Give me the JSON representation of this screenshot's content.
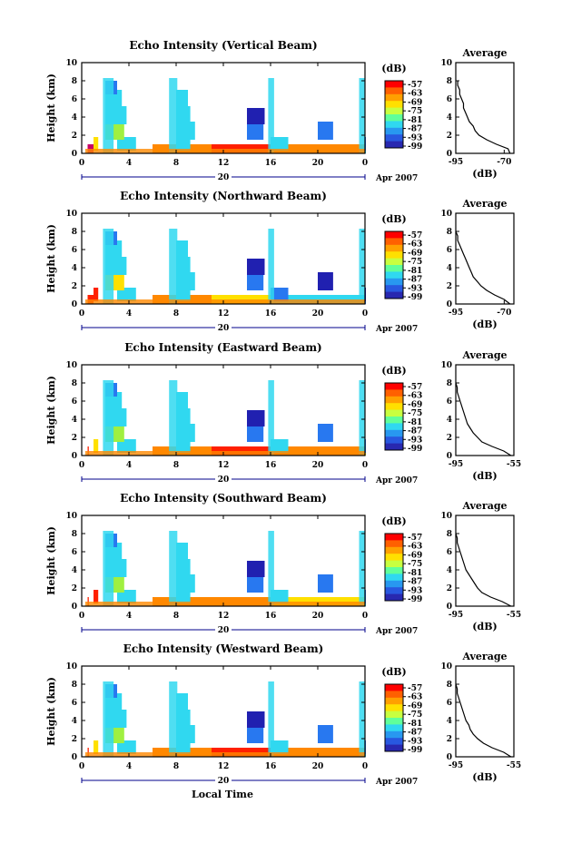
{
  "xlabel": "Local Time",
  "panels": [
    {
      "title": "Echo Intensity (Vertical Beam)",
      "ylabel": "Height (km)",
      "date_day": "20",
      "date_month_year": "Apr 2007",
      "cbar_unit": "(dB)",
      "cbar_ticks": [
        "-57",
        "-63",
        "-69",
        "-75",
        "-81",
        "-87",
        "-93",
        "-99"
      ],
      "avg_title": "Average",
      "avg_xlabel": "(dB)",
      "avg_xticks": [
        "-95",
        "-70"
      ],
      "avg_xlim": [
        -95,
        -65
      ],
      "avg_profile": [
        [
          0.0,
          -67
        ],
        [
          0.5,
          -68
        ],
        [
          1.0,
          -74
        ],
        [
          1.5,
          -79
        ],
        [
          2.0,
          -83
        ],
        [
          2.5,
          -85
        ],
        [
          3.0,
          -86
        ],
        [
          3.5,
          -88
        ],
        [
          4.0,
          -89
        ],
        [
          4.5,
          -90
        ],
        [
          5.0,
          -91
        ],
        [
          5.5,
          -91
        ],
        [
          6.0,
          -92
        ],
        [
          6.5,
          -93
        ],
        [
          7.0,
          -93
        ],
        [
          7.5,
          -94
        ],
        [
          8.0,
          -94
        ]
      ],
      "cells": [
        [
          0.5,
          0,
          "m",
          0.5
        ],
        [
          6,
          0,
          "o",
          5.5
        ],
        [
          11,
          0,
          "r",
          9
        ],
        [
          16,
          0,
          "o",
          13
        ],
        [
          24,
          0,
          "c",
          18
        ],
        [
          1,
          1,
          "y",
          1.4
        ],
        [
          3,
          1,
          "c",
          1.6
        ],
        [
          8,
          1,
          "c",
          1.2
        ],
        [
          16,
          1,
          "c",
          1.5
        ],
        [
          24,
          1,
          "b",
          1.0
        ],
        [
          2,
          2,
          "g",
          1.6
        ],
        [
          8,
          2,
          "c",
          1.6
        ],
        [
          14,
          2,
          "b",
          1.4
        ],
        [
          20,
          2,
          "b",
          1.3
        ],
        [
          2,
          4,
          "c",
          1.8
        ],
        [
          8,
          4,
          "c",
          1.2
        ],
        [
          14,
          4,
          "d",
          1.5
        ],
        [
          2,
          6,
          "c",
          1.4
        ],
        [
          8,
          6,
          "c",
          1.0
        ],
        [
          14,
          6,
          "w",
          1.5
        ],
        [
          2,
          8,
          "b",
          1.0
        ],
        [
          14,
          9,
          "w",
          2.0
        ]
      ]
    },
    {
      "title": "Echo Intensity (Northward Beam)",
      "ylabel": "Height (km)",
      "date_day": "20",
      "date_month_year": "Apr 2007",
      "cbar_unit": "(dB)",
      "cbar_ticks": [
        "-57",
        "-63",
        "-69",
        "-75",
        "-81",
        "-87",
        "-93",
        "-99"
      ],
      "avg_title": "Average",
      "avg_xlabel": "(dB)",
      "avg_xticks": [
        "-95",
        "-70"
      ],
      "avg_xlim": [
        -95,
        -65
      ],
      "avg_profile": [
        [
          0.0,
          -67
        ],
        [
          0.5,
          -70
        ],
        [
          1.0,
          -75
        ],
        [
          1.5,
          -79
        ],
        [
          2.0,
          -82
        ],
        [
          2.5,
          -84
        ],
        [
          3.0,
          -86
        ],
        [
          3.5,
          -87
        ],
        [
          4.0,
          -88
        ],
        [
          4.5,
          -89
        ],
        [
          5.0,
          -90
        ],
        [
          5.5,
          -91
        ],
        [
          6.0,
          -92
        ],
        [
          6.5,
          -93
        ],
        [
          7.0,
          -94
        ],
        [
          7.5,
          -94
        ],
        [
          8.0,
          -95
        ]
      ],
      "cells": [
        [
          0.5,
          0,
          "r",
          0.5
        ],
        [
          6,
          0,
          "o",
          5.5
        ],
        [
          11,
          0,
          "y",
          9
        ],
        [
          16,
          0,
          "c",
          13
        ],
        [
          24,
          0,
          "b",
          18
        ],
        [
          1,
          1,
          "r",
          1.4
        ],
        [
          3,
          1,
          "c",
          1.6
        ],
        [
          8,
          1,
          "c",
          1.2
        ],
        [
          16,
          1,
          "b",
          1.5
        ],
        [
          24,
          1,
          "d",
          1.0
        ],
        [
          2,
          2,
          "y",
          1.6
        ],
        [
          8,
          2,
          "c",
          1.6
        ],
        [
          14,
          2,
          "b",
          1.4
        ],
        [
          20,
          2,
          "d",
          1.3
        ],
        [
          2,
          4,
          "c",
          1.8
        ],
        [
          8,
          4,
          "c",
          1.2
        ],
        [
          14,
          4,
          "d",
          1.5
        ],
        [
          2,
          6,
          "c",
          1.4
        ],
        [
          8,
          6,
          "c",
          1.0
        ],
        [
          14,
          6,
          "w",
          1.5
        ],
        [
          2,
          8,
          "b",
          1.0
        ],
        [
          14,
          9,
          "w",
          2.0
        ]
      ]
    },
    {
      "title": "Echo Intensity (Eastward Beam)",
      "ylabel": "Height (km)",
      "date_day": "20",
      "date_month_year": "Apr 2007",
      "cbar_unit": "(dB)",
      "cbar_ticks": [
        "-57",
        "-63",
        "-69",
        "-75",
        "-81",
        "-87",
        "-93",
        "-99"
      ],
      "avg_title": "Average",
      "avg_xlabel": "(dB)",
      "avg_xticks": [
        "-95",
        "-55"
      ],
      "avg_xlim": [
        -95,
        -55
      ],
      "avg_profile": [
        [
          0.0,
          -57
        ],
        [
          0.5,
          -62
        ],
        [
          1.0,
          -70
        ],
        [
          1.5,
          -77
        ],
        [
          2.0,
          -80
        ],
        [
          2.5,
          -83
        ],
        [
          3.0,
          -85
        ],
        [
          3.5,
          -87
        ],
        [
          4.0,
          -88
        ],
        [
          4.5,
          -89
        ],
        [
          5.0,
          -90
        ],
        [
          5.5,
          -91
        ],
        [
          6.0,
          -92
        ],
        [
          6.5,
          -93
        ],
        [
          7.0,
          -94
        ],
        [
          7.5,
          -94
        ],
        [
          8.0,
          -95
        ]
      ],
      "cells": [
        [
          0.5,
          0,
          "r",
          0.6
        ],
        [
          6,
          0,
          "o",
          5.5
        ],
        [
          11,
          0,
          "r",
          9
        ],
        [
          16,
          0,
          "o",
          13
        ],
        [
          24,
          0,
          "y",
          18
        ],
        [
          1,
          1,
          "y",
          1.4
        ],
        [
          3,
          1,
          "c",
          1.6
        ],
        [
          8,
          1,
          "c",
          1.2
        ],
        [
          16,
          1,
          "c",
          1.5
        ],
        [
          24,
          1,
          "b",
          1.0
        ],
        [
          2,
          2,
          "g",
          1.6
        ],
        [
          8,
          2,
          "c",
          1.6
        ],
        [
          14,
          2,
          "b",
          1.4
        ],
        [
          20,
          2,
          "b",
          1.3
        ],
        [
          2,
          4,
          "c",
          1.8
        ],
        [
          8,
          4,
          "c",
          1.2
        ],
        [
          14,
          4,
          "d",
          1.5
        ],
        [
          2,
          6,
          "c",
          1.4
        ],
        [
          8,
          6,
          "c",
          1.0
        ],
        [
          14,
          6,
          "w",
          1.5
        ],
        [
          2,
          8,
          "b",
          1.0
        ],
        [
          14,
          9,
          "w",
          2.0
        ]
      ]
    },
    {
      "title": "Echo Intensity (Southward Beam)",
      "ylabel": "Height (km)",
      "date_day": "20",
      "date_month_year": "Apr 2007",
      "cbar_unit": "(dB)",
      "cbar_ticks": [
        "-57",
        "-63",
        "-69",
        "-75",
        "-81",
        "-87",
        "-93",
        "-99"
      ],
      "avg_title": "Average",
      "avg_xlabel": "(dB)",
      "avg_xticks": [
        "-95",
        "-55"
      ],
      "avg_xlim": [
        -95,
        -55
      ],
      "avg_profile": [
        [
          0.0,
          -57
        ],
        [
          0.5,
          -63
        ],
        [
          1.0,
          -71
        ],
        [
          1.5,
          -77
        ],
        [
          2.0,
          -80
        ],
        [
          2.5,
          -82
        ],
        [
          3.0,
          -84
        ],
        [
          3.5,
          -86
        ],
        [
          4.0,
          -88
        ],
        [
          4.5,
          -89
        ],
        [
          5.0,
          -90
        ],
        [
          5.5,
          -91
        ],
        [
          6.0,
          -92
        ],
        [
          6.5,
          -93
        ],
        [
          7.0,
          -94
        ],
        [
          7.5,
          -94
        ],
        [
          8.0,
          -95
        ]
      ],
      "cells": [
        [
          0.5,
          0,
          "r",
          0.6
        ],
        [
          6,
          0,
          "o",
          5.5
        ],
        [
          11,
          0,
          "o",
          9
        ],
        [
          16,
          0,
          "y",
          13
        ],
        [
          24,
          0,
          "c",
          18
        ],
        [
          1,
          1,
          "r",
          1.4
        ],
        [
          3,
          1,
          "c",
          1.6
        ],
        [
          8,
          1,
          "c",
          1.2
        ],
        [
          16,
          1,
          "c",
          1.5
        ],
        [
          24,
          1,
          "b",
          1.0
        ],
        [
          2,
          2,
          "g",
          1.6
        ],
        [
          8,
          2,
          "c",
          1.6
        ],
        [
          14,
          2,
          "b",
          1.4
        ],
        [
          20,
          2,
          "b",
          1.3
        ],
        [
          2,
          4,
          "c",
          1.8
        ],
        [
          8,
          4,
          "c",
          1.2
        ],
        [
          14,
          4,
          "d",
          1.5
        ],
        [
          2,
          6,
          "c",
          1.4
        ],
        [
          8,
          6,
          "c",
          1.0
        ],
        [
          14,
          6,
          "w",
          1.5
        ],
        [
          2,
          8,
          "b",
          1.0
        ],
        [
          14,
          9,
          "w",
          2.0
        ]
      ]
    },
    {
      "title": "Echo Intensity (Westward Beam)",
      "ylabel": "Height (km)",
      "date_day": "20",
      "date_month_year": "Apr 2007",
      "cbar_unit": "(dB)",
      "cbar_ticks": [
        "-57",
        "-63",
        "-69",
        "-75",
        "-81",
        "-87",
        "-93",
        "-99"
      ],
      "avg_title": "Average",
      "avg_xlabel": "(dB)",
      "avg_xticks": [
        "-95",
        "-55"
      ],
      "avg_xlim": [
        -95,
        -55
      ],
      "avg_profile": [
        [
          0.0,
          -57
        ],
        [
          0.5,
          -62
        ],
        [
          1.0,
          -70
        ],
        [
          1.5,
          -76
        ],
        [
          2.0,
          -80
        ],
        [
          2.5,
          -83
        ],
        [
          3.0,
          -85
        ],
        [
          3.5,
          -86
        ],
        [
          4.0,
          -88
        ],
        [
          4.5,
          -89
        ],
        [
          5.0,
          -90
        ],
        [
          5.5,
          -91
        ],
        [
          6.0,
          -92
        ],
        [
          6.5,
          -93
        ],
        [
          7.0,
          -94
        ],
        [
          7.5,
          -94
        ],
        [
          8.0,
          -95
        ]
      ],
      "cells": [
        [
          0.5,
          0,
          "r",
          0.6
        ],
        [
          6,
          0,
          "o",
          5.5
        ],
        [
          11,
          0,
          "r",
          9
        ],
        [
          16,
          0,
          "o",
          13
        ],
        [
          24,
          0,
          "c",
          18
        ],
        [
          1,
          1,
          "y",
          1.4
        ],
        [
          3,
          1,
          "c",
          1.6
        ],
        [
          8,
          1,
          "c",
          1.2
        ],
        [
          16,
          1,
          "c",
          1.5
        ],
        [
          24,
          1,
          "b",
          1.0
        ],
        [
          2,
          2,
          "g",
          1.6
        ],
        [
          8,
          2,
          "c",
          1.6
        ],
        [
          14,
          2,
          "b",
          1.4
        ],
        [
          20,
          2,
          "b",
          1.3
        ],
        [
          2,
          4,
          "c",
          1.8
        ],
        [
          8,
          4,
          "c",
          1.2
        ],
        [
          14,
          4,
          "d",
          1.5
        ],
        [
          2,
          6,
          "c",
          1.4
        ],
        [
          8,
          6,
          "c",
          1.0
        ],
        [
          14,
          6,
          "w",
          1.5
        ],
        [
          2,
          8,
          "b",
          1.0
        ],
        [
          14,
          9,
          "w",
          2.0
        ]
      ]
    }
  ],
  "chart_data": [
    {
      "type": "heatmap",
      "title": "Echo Intensity (Vertical Beam)",
      "xlabel": "",
      "ylabel": "Height (km)",
      "x_ticks": [
        "0",
        "4",
        "8",
        "12",
        "16",
        "20",
        "0"
      ],
      "y_ticks": [
        "0",
        "2",
        "4",
        "6",
        "8",
        "10"
      ],
      "xlim": [
        0,
        24
      ],
      "ylim": [
        0,
        10
      ],
      "colorbar_label": "(dB)",
      "colorbar_range": [
        -99,
        -57
      ]
    },
    {
      "type": "line",
      "title": "Average",
      "xlabel": "(dB)",
      "ylabel": "",
      "xlim": [
        -95,
        -65
      ],
      "ylim": [
        0,
        10
      ]
    },
    {
      "type": "heatmap",
      "title": "Echo Intensity (Northward Beam)",
      "xlabel": "",
      "ylabel": "Height (km)",
      "x_ticks": [
        "0",
        "4",
        "8",
        "12",
        "16",
        "20",
        "0"
      ],
      "y_ticks": [
        "0",
        "2",
        "4",
        "6",
        "8",
        "10"
      ],
      "xlim": [
        0,
        24
      ],
      "ylim": [
        0,
        10
      ],
      "colorbar_label": "(dB)",
      "colorbar_range": [
        -99,
        -57
      ]
    },
    {
      "type": "line",
      "title": "Average",
      "xlabel": "(dB)",
      "ylabel": "",
      "xlim": [
        -95,
        -65
      ],
      "ylim": [
        0,
        10
      ]
    },
    {
      "type": "heatmap",
      "title": "Echo Intensity (Eastward Beam)",
      "xlabel": "",
      "ylabel": "Height (km)",
      "x_ticks": [
        "0",
        "4",
        "8",
        "12",
        "16",
        "20",
        "0"
      ],
      "y_ticks": [
        "0",
        "2",
        "4",
        "6",
        "8",
        "10"
      ],
      "xlim": [
        0,
        24
      ],
      "ylim": [
        0,
        10
      ],
      "colorbar_label": "(dB)",
      "colorbar_range": [
        -99,
        -57
      ]
    },
    {
      "type": "line",
      "title": "Average",
      "xlabel": "(dB)",
      "ylabel": "",
      "xlim": [
        -95,
        -55
      ],
      "ylim": [
        0,
        10
      ]
    },
    {
      "type": "heatmap",
      "title": "Echo Intensity (Southward Beam)",
      "xlabel": "",
      "ylabel": "Height (km)",
      "x_ticks": [
        "0",
        "4",
        "8",
        "12",
        "16",
        "20",
        "0"
      ],
      "y_ticks": [
        "0",
        "2",
        "4",
        "6",
        "8",
        "10"
      ],
      "xlim": [
        0,
        24
      ],
      "ylim": [
        0,
        10
      ],
      "colorbar_label": "(dB)",
      "colorbar_range": [
        -99,
        -57
      ]
    },
    {
      "type": "line",
      "title": "Average",
      "xlabel": "(dB)",
      "ylabel": "",
      "xlim": [
        -95,
        -55
      ],
      "ylim": [
        0,
        10
      ]
    },
    {
      "type": "heatmap",
      "title": "Echo Intensity (Westward Beam)",
      "xlabel": "Local Time",
      "ylabel": "Height (km)",
      "x_ticks": [
        "0",
        "4",
        "8",
        "12",
        "16",
        "20",
        "0"
      ],
      "y_ticks": [
        "0",
        "2",
        "4",
        "6",
        "8",
        "10"
      ],
      "xlim": [
        0,
        24
      ],
      "ylim": [
        0,
        10
      ],
      "colorbar_label": "(dB)",
      "colorbar_range": [
        -99,
        -57
      ]
    },
    {
      "type": "line",
      "title": "Average",
      "xlabel": "(dB)",
      "ylabel": "",
      "xlim": [
        -95,
        -55
      ],
      "ylim": [
        0,
        10
      ]
    }
  ],
  "x_ticks": [
    "0",
    "4",
    "8",
    "12",
    "16",
    "20",
    "0"
  ],
  "y_ticks": [
    "0",
    "2",
    "4",
    "6",
    "8",
    "10"
  ],
  "avg_yticks": [
    "0",
    "2",
    "4",
    "6",
    "8",
    "10"
  ],
  "colors": {
    "m": "#c80064",
    "r": "#ff2000",
    "o": "#ff8800",
    "y": "#ffe000",
    "g": "#a0f040",
    "c": "#30d8f0",
    "b": "#2878f0",
    "d": "#2020b0",
    "w": "#ffffff"
  },
  "cbar_colors": [
    "#ff0000",
    "#ff6000",
    "#ffa000",
    "#ffe000",
    "#c8ff40",
    "#60ff9a",
    "#30d8f0",
    "#2898f0",
    "#2858e0",
    "#2828b0"
  ]
}
